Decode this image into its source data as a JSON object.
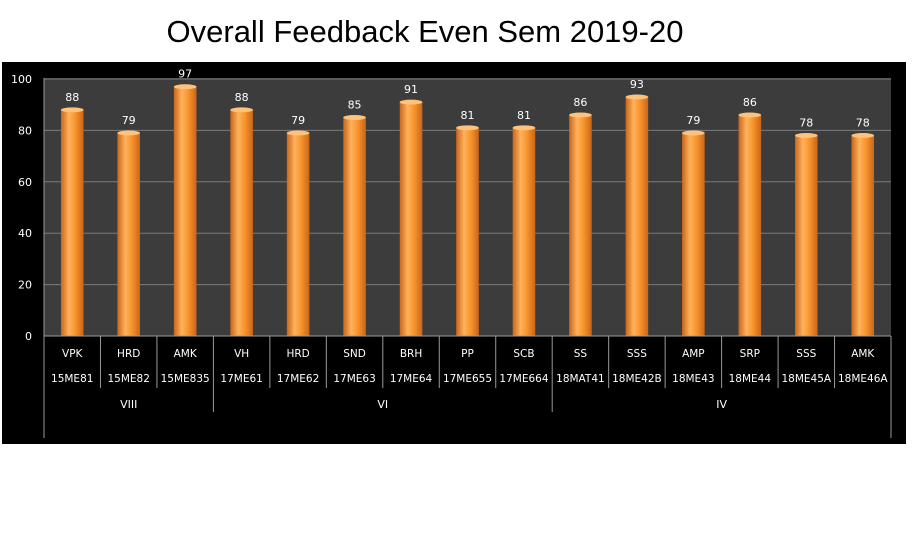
{
  "title": "Overall Feedback Even Sem 2019-20",
  "chart_data": {
    "type": "bar",
    "title": "Overall Feedback Even Sem 2019-20",
    "xlabel": "",
    "ylabel": "",
    "ylim": [
      0,
      100
    ],
    "yticks": [
      0,
      20,
      40,
      60,
      80,
      100
    ],
    "grid": true,
    "legend": "none",
    "colors": {
      "bar": "#f7932b",
      "background": "#000000",
      "plot_area": "#3c3c3c",
      "grid": "#7a7a7a",
      "text": "#ffffff"
    },
    "categories": [
      {
        "name": "VPK",
        "code": "15ME81",
        "group": "VIII"
      },
      {
        "name": "HRD",
        "code": "15ME82",
        "group": "VIII"
      },
      {
        "name": "AMK",
        "code": "15ME835",
        "group": "VIII"
      },
      {
        "name": "VH",
        "code": "17ME61",
        "group": "VI"
      },
      {
        "name": "HRD",
        "code": "17ME62",
        "group": "VI"
      },
      {
        "name": "SND",
        "code": "17ME63",
        "group": "VI"
      },
      {
        "name": "BRH",
        "code": "17ME64",
        "group": "VI"
      },
      {
        "name": "PP",
        "code": "17ME655",
        "group": "VI"
      },
      {
        "name": "SCB",
        "code": "17ME664",
        "group": "VI"
      },
      {
        "name": "SS",
        "code": "18MAT41",
        "group": "IV"
      },
      {
        "name": "SSS",
        "code": "18ME42B",
        "group": "IV"
      },
      {
        "name": "AMP",
        "code": "18ME43",
        "group": "IV"
      },
      {
        "name": "SRP",
        "code": "18ME44",
        "group": "IV"
      },
      {
        "name": "SSS",
        "code": "18ME45A",
        "group": "IV"
      },
      {
        "name": "AMK",
        "code": "18ME46A",
        "group": "IV"
      }
    ],
    "groups": [
      "VIII",
      "VI",
      "IV"
    ],
    "values": [
      88,
      79,
      97,
      88,
      79,
      85,
      91,
      81,
      81,
      86,
      93,
      79,
      86,
      78,
      78
    ]
  }
}
